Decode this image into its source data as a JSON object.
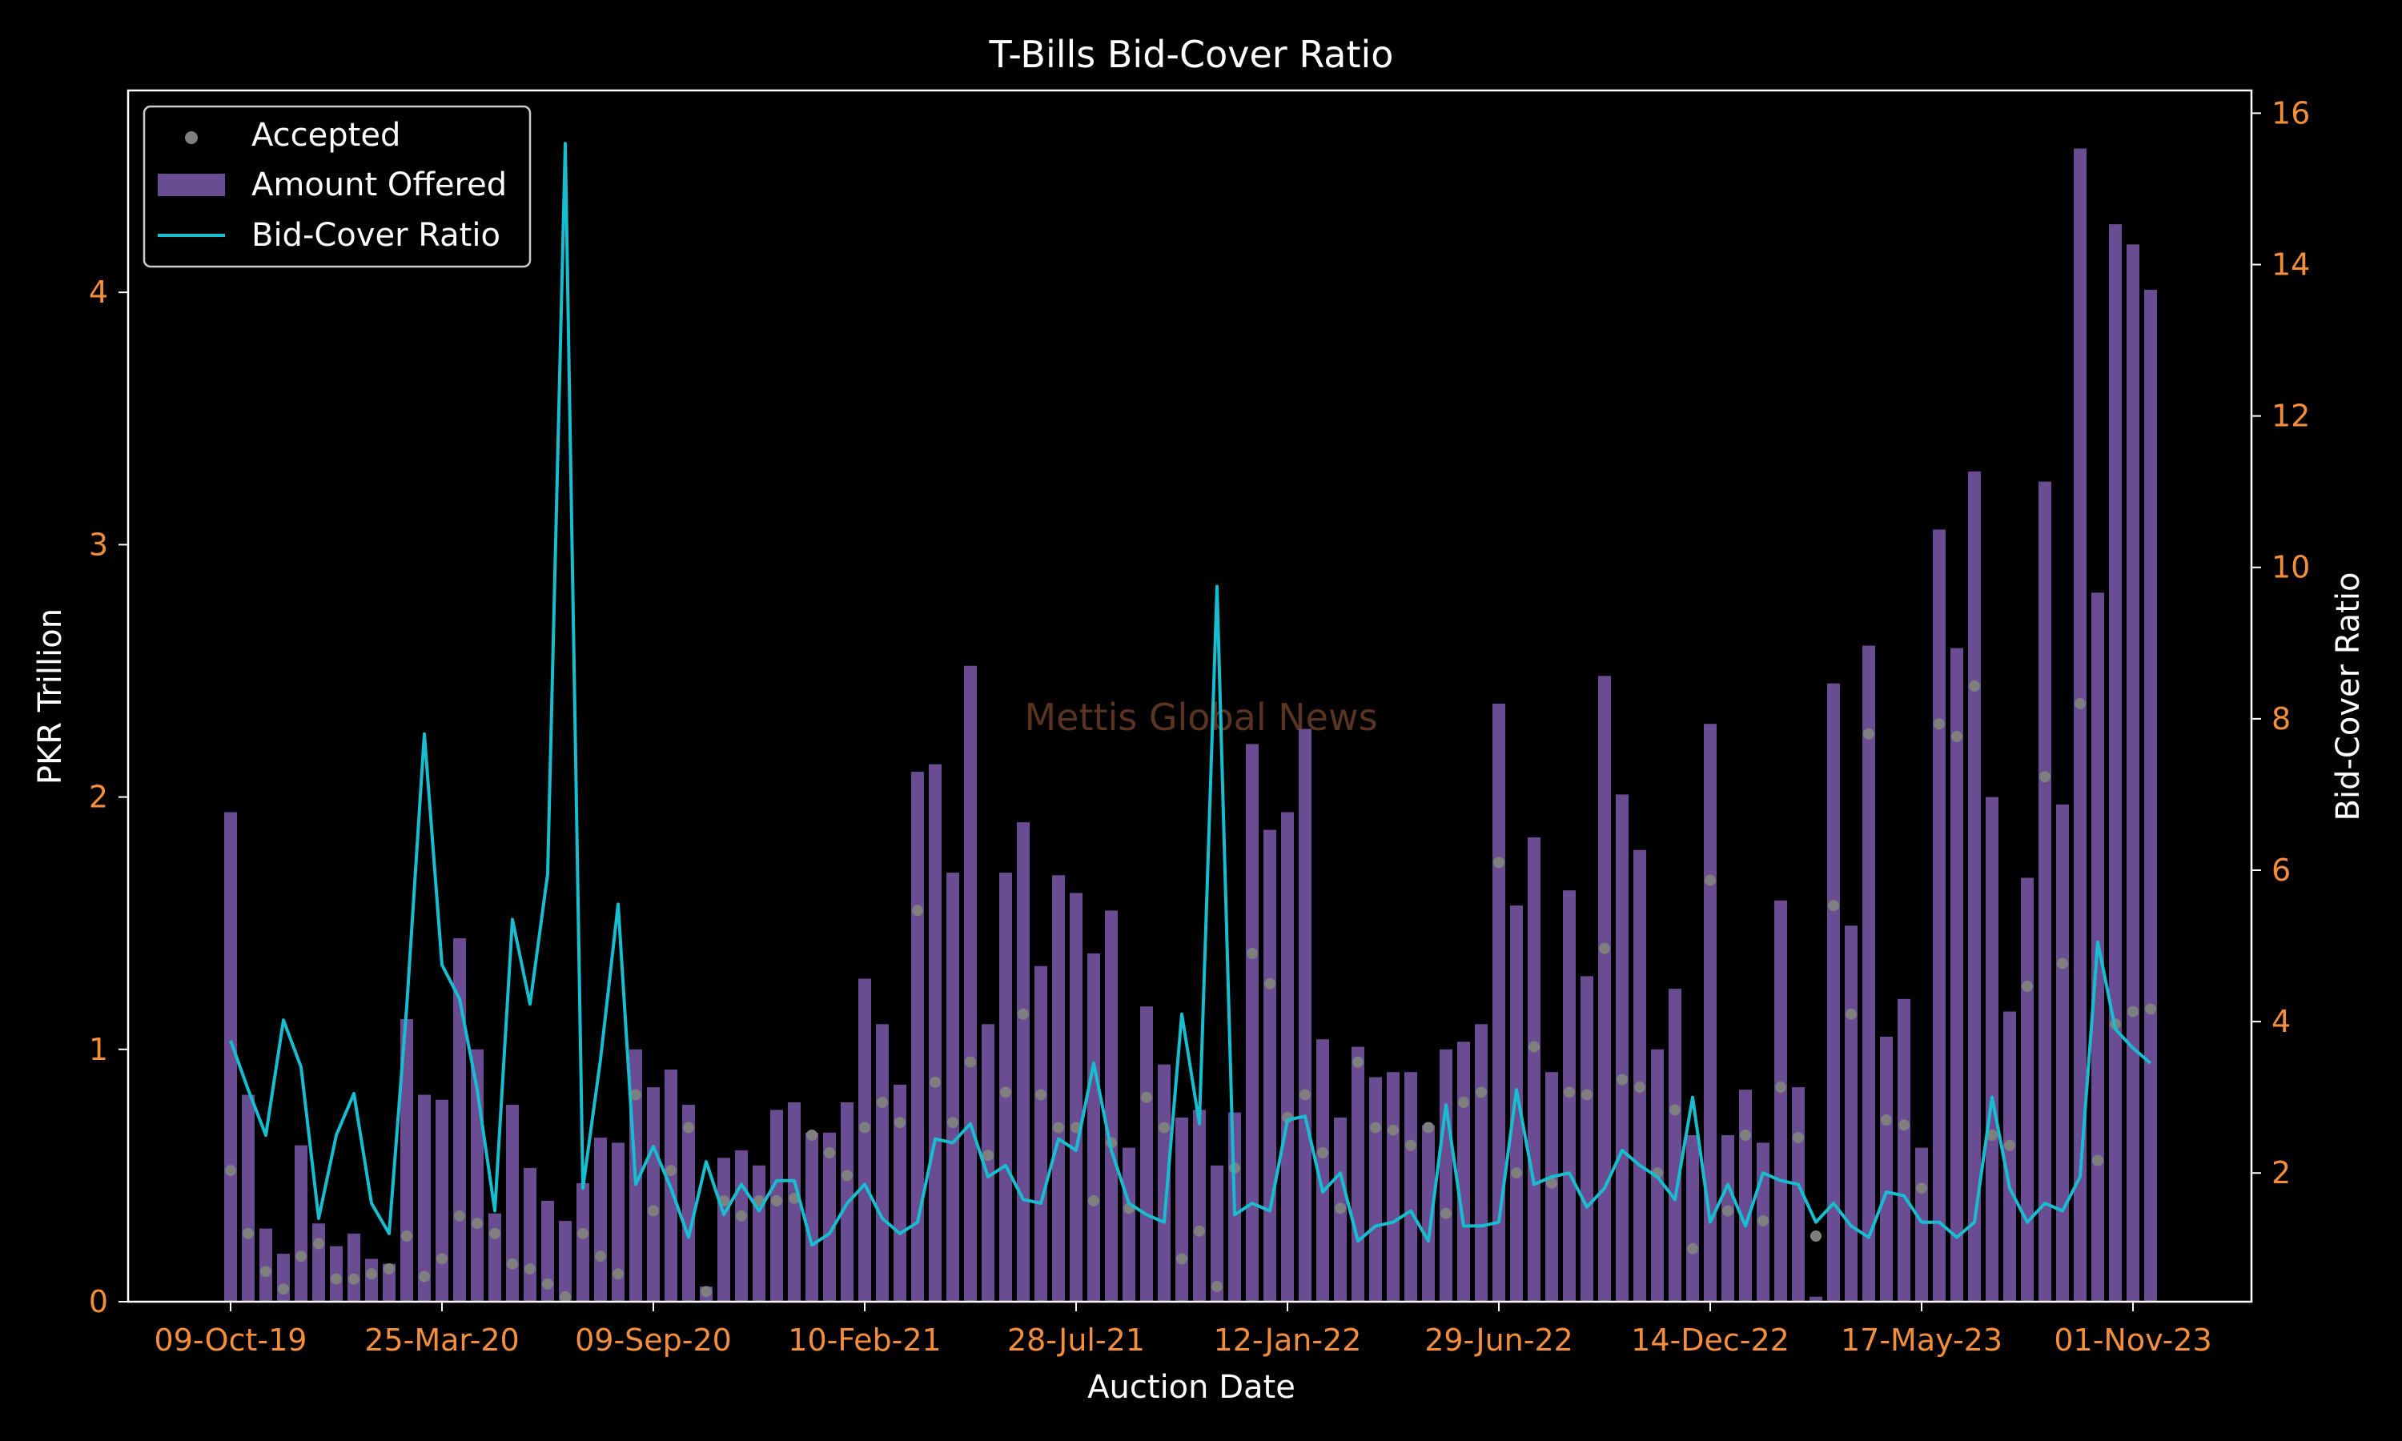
{
  "chart_data": {
    "type": "bar",
    "title": "T-Bills Bid-Cover Ratio",
    "xlabel": "Auction Date",
    "ylabel": "PKR Trillion",
    "y2label": "Bid-Cover Ratio",
    "watermark": "Mettis Global News",
    "x_tick_labels": [
      "09-Oct-19",
      "25-Mar-20",
      "09-Sep-20",
      "10-Feb-21",
      "28-Jul-21",
      "12-Jan-22",
      "29-Jun-22",
      "14-Dec-22",
      "17-May-23",
      "01-Nov-23"
    ],
    "x_tick_indices": [
      0,
      12,
      24,
      36,
      48,
      60,
      72,
      84,
      96,
      108
    ],
    "ylim": [
      0,
      4.8
    ],
    "y_ticks": [
      0,
      1,
      2,
      3,
      4
    ],
    "y2lim": [
      0.3,
      16.3
    ],
    "y2_ticks": [
      2,
      4,
      6,
      8,
      10,
      12,
      14,
      16
    ],
    "legend": {
      "position": "top-left",
      "entries": [
        "Accepted",
        "Amount Offered",
        "Bid-Cover Ratio"
      ]
    },
    "colors": {
      "bars": "#6a4c93",
      "accepted": "#7f7f7f",
      "ratio": "#17becf",
      "ticks": "#f28e3c",
      "background": "#000000"
    },
    "series": [
      {
        "name": "Amount Offered",
        "type": "bar",
        "axis": "left",
        "values": [
          1.94,
          0.82,
          0.29,
          0.19,
          0.62,
          0.31,
          0.22,
          0.27,
          0.17,
          0.15,
          1.12,
          0.82,
          0.8,
          1.44,
          1.0,
          0.35,
          0.78,
          0.53,
          0.4,
          0.32,
          0.47,
          0.65,
          0.63,
          1.0,
          0.85,
          0.92,
          0.78,
          0.06,
          0.57,
          0.6,
          0.54,
          0.76,
          0.79,
          0.67,
          0.67,
          0.79,
          1.28,
          1.1,
          0.86,
          2.1,
          2.13,
          1.7,
          2.52,
          1.1,
          1.7,
          1.9,
          1.33,
          1.69,
          1.62,
          1.38,
          1.55,
          0.61,
          1.17,
          0.94,
          0.73,
          0.76,
          0.54,
          0.75,
          2.21,
          1.87,
          1.94,
          2.27,
          1.04,
          0.73,
          1.01,
          0.89,
          0.91,
          0.91,
          0.7,
          1.0,
          1.03,
          1.1,
          2.37,
          1.57,
          1.84,
          0.91,
          1.63,
          1.29,
          2.48,
          2.01,
          1.79,
          1.0,
          1.24,
          0.66,
          2.29,
          0.66,
          0.84,
          0.63,
          1.59,
          0.85,
          0.02,
          2.45,
          1.49,
          2.6,
          1.05,
          1.2,
          0.61,
          3.06,
          2.59,
          3.29,
          2.0,
          1.15,
          1.68,
          3.25,
          1.97,
          4.57,
          2.81,
          4.27,
          4.19,
          4.01
        ]
      },
      {
        "name": "Accepted",
        "type": "scatter",
        "axis": "left",
        "values": [
          0.52,
          0.27,
          0.12,
          0.05,
          0.18,
          0.23,
          0.09,
          0.09,
          0.11,
          0.13,
          0.26,
          0.1,
          0.17,
          0.34,
          0.31,
          0.27,
          0.15,
          0.13,
          0.07,
          0.02,
          0.27,
          0.18,
          0.11,
          0.82,
          0.36,
          0.52,
          0.69,
          0.04,
          0.4,
          0.34,
          0.4,
          0.4,
          0.41,
          0.66,
          0.59,
          0.5,
          0.69,
          0.79,
          0.71,
          1.55,
          0.87,
          0.71,
          0.95,
          0.58,
          0.83,
          1.14,
          0.82,
          0.69,
          0.69,
          0.4,
          0.63,
          0.37,
          0.81,
          0.69,
          0.17,
          0.28,
          0.06,
          0.53,
          1.38,
          1.26,
          0.73,
          0.82,
          0.59,
          0.37,
          0.95,
          0.69,
          0.68,
          0.62,
          0.69,
          0.35,
          0.79,
          0.83,
          1.74,
          0.51,
          1.01,
          0.47,
          0.83,
          0.82,
          1.4,
          0.88,
          0.85,
          0.51,
          0.76,
          0.21,
          1.67,
          0.36,
          0.66,
          0.32,
          0.85,
          0.65,
          0.26,
          1.57,
          1.14,
          2.25,
          0.72,
          0.7,
          0.45,
          2.29,
          2.24,
          2.44,
          0.66,
          0.62,
          1.25,
          2.08,
          1.34,
          2.37,
          0.56,
          1.1,
          1.15,
          1.16
        ]
      },
      {
        "name": "Bid-Cover Ratio",
        "type": "line",
        "axis": "right",
        "values": [
          3.75,
          3.1,
          2.5,
          4.02,
          3.4,
          1.4,
          2.5,
          3.05,
          1.6,
          1.2,
          4.2,
          7.8,
          4.75,
          4.3,
          3.1,
          1.5,
          5.35,
          4.23,
          5.95,
          15.6,
          1.8,
          3.5,
          5.55,
          1.85,
          2.35,
          1.8,
          1.15,
          2.15,
          1.45,
          1.85,
          1.5,
          1.9,
          1.9,
          1.05,
          1.2,
          1.6,
          1.85,
          1.4,
          1.2,
          1.35,
          2.45,
          2.4,
          2.65,
          1.95,
          2.1,
          1.65,
          1.6,
          2.45,
          2.3,
          3.45,
          2.3,
          1.6,
          1.45,
          1.35,
          4.1,
          2.65,
          9.75,
          1.45,
          1.6,
          1.5,
          2.7,
          2.75,
          1.75,
          2.0,
          1.1,
          1.3,
          1.35,
          1.5,
          1.1,
          2.9,
          1.3,
          1.3,
          1.35,
          3.1,
          1.85,
          1.95,
          2.0,
          1.55,
          1.8,
          2.3,
          2.1,
          1.95,
          1.65,
          3.0,
          1.35,
          1.85,
          1.3,
          2.0,
          1.9,
          1.85,
          1.35,
          1.6,
          1.3,
          1.15,
          1.75,
          1.7,
          1.35,
          1.35,
          1.15,
          1.35,
          3.0,
          1.8,
          1.35,
          1.6,
          1.5,
          1.95,
          5.05,
          3.9,
          3.65,
          3.45
        ]
      }
    ]
  }
}
